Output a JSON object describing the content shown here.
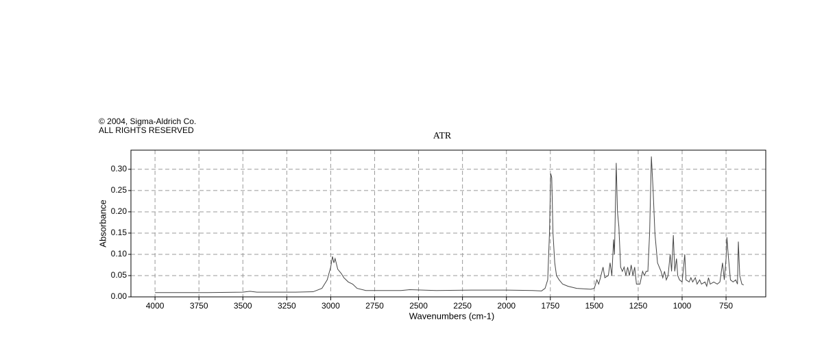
{
  "chart_data": {
    "type": "line",
    "notice": [
      "© 2004, Sigma-Aldrich Co.",
      "ALL RIGHTS RESERVED"
    ],
    "title": "ATR",
    "x_label": "Wavenumbers (cm-1)",
    "y_label": "Absorbance",
    "xlim": [
      4137,
      524
    ],
    "ylim": [
      0,
      0.345
    ],
    "xticks": [
      4000,
      3750,
      3500,
      3250,
      3000,
      2750,
      2500,
      2250,
      2000,
      1750,
      1500,
      1250,
      1000,
      750
    ],
    "yticks": [
      {
        "value": 0,
        "label": "0.00"
      },
      {
        "value": 0.05,
        "label": "0.05"
      },
      {
        "value": 0.1,
        "label": "0.10"
      },
      {
        "value": 0.15,
        "label": "0.15"
      },
      {
        "value": 0.2,
        "label": "0.20"
      },
      {
        "value": 0.25,
        "label": "0.25"
      },
      {
        "value": 0.3,
        "label": "0.30"
      }
    ],
    "grid": true,
    "series": [
      {
        "name": "ATR",
        "color": "#444444",
        "x": [
          4000,
          3700,
          3500,
          3460,
          3420,
          3200,
          3100,
          3050,
          3020,
          3000,
          2990,
          2982,
          2975,
          2960,
          2950,
          2940,
          2925,
          2900,
          2875,
          2850,
          2800,
          2600,
          2550,
          2400,
          2200,
          2000,
          1850,
          1800,
          1780,
          1765,
          1755,
          1748,
          1742,
          1735,
          1725,
          1715,
          1700,
          1680,
          1650,
          1600,
          1520,
          1500,
          1485,
          1475,
          1465,
          1450,
          1440,
          1420,
          1410,
          1400,
          1390,
          1385,
          1375,
          1368,
          1360,
          1350,
          1340,
          1330,
          1320,
          1310,
          1300,
          1290,
          1280,
          1270,
          1260,
          1240,
          1225,
          1215,
          1205,
          1195,
          1185,
          1175,
          1165,
          1155,
          1140,
          1120,
          1110,
          1100,
          1090,
          1080,
          1068,
          1060,
          1050,
          1042,
          1032,
          1025,
          1015,
          1000,
          985,
          978,
          960,
          950,
          940,
          925,
          915,
          900,
          890,
          870,
          860,
          850,
          840,
          820,
          800,
          785,
          770,
          760,
          750,
          745,
          738,
          725,
          710,
          695,
          685,
          680,
          672,
          660,
          650
        ],
        "values": [
          0.01,
          0.01,
          0.011,
          0.013,
          0.011,
          0.011,
          0.012,
          0.02,
          0.04,
          0.07,
          0.095,
          0.08,
          0.09,
          0.065,
          0.06,
          0.055,
          0.045,
          0.035,
          0.03,
          0.02,
          0.015,
          0.015,
          0.017,
          0.015,
          0.016,
          0.016,
          0.015,
          0.014,
          0.02,
          0.04,
          0.15,
          0.29,
          0.28,
          0.15,
          0.08,
          0.05,
          0.04,
          0.03,
          0.025,
          0.02,
          0.018,
          0.02,
          0.04,
          0.03,
          0.045,
          0.07,
          0.045,
          0.05,
          0.08,
          0.05,
          0.135,
          0.1,
          0.315,
          0.2,
          0.165,
          0.07,
          0.06,
          0.07,
          0.05,
          0.07,
          0.05,
          0.075,
          0.05,
          0.07,
          0.03,
          0.03,
          0.06,
          0.05,
          0.06,
          0.06,
          0.15,
          0.33,
          0.25,
          0.15,
          0.08,
          0.06,
          0.045,
          0.06,
          0.04,
          0.05,
          0.1,
          0.06,
          0.145,
          0.06,
          0.09,
          0.05,
          0.04,
          0.035,
          0.1,
          0.04,
          0.035,
          0.045,
          0.035,
          0.045,
          0.03,
          0.04,
          0.03,
          0.035,
          0.025,
          0.045,
          0.03,
          0.035,
          0.03,
          0.035,
          0.08,
          0.04,
          0.09,
          0.14,
          0.1,
          0.04,
          0.035,
          0.04,
          0.03,
          0.13,
          0.05,
          0.03,
          0.028
        ]
      }
    ]
  }
}
